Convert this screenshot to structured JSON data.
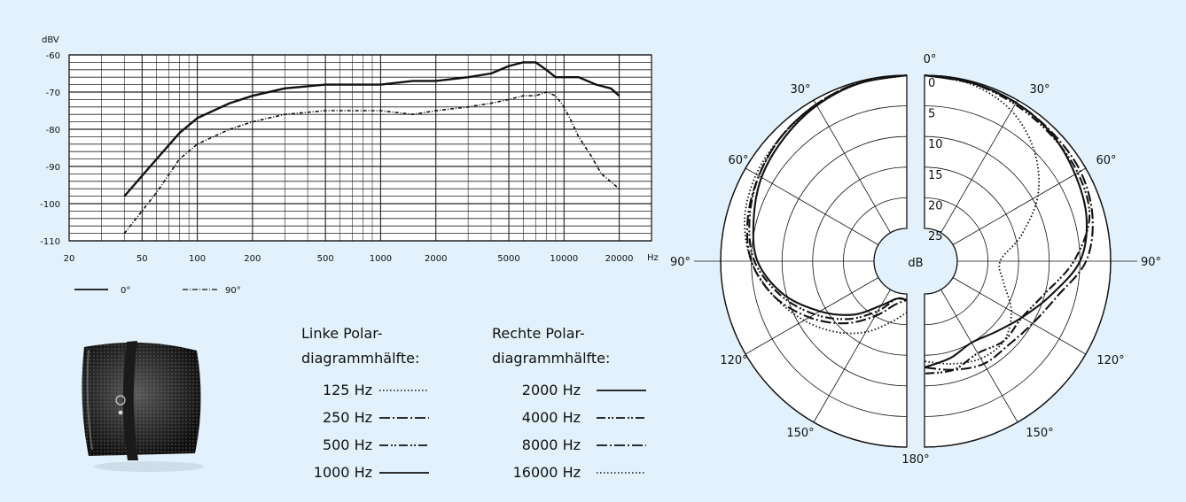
{
  "colors": {
    "panel_bg": "#e2f1fb",
    "ink": "#111111",
    "plot_bg": "#ffffff"
  },
  "chart_data": [
    {
      "type": "line",
      "xscale": "log",
      "ylabel": "dBV",
      "xunit": "Hz",
      "xlim": [
        20,
        30000
      ],
      "ylim": [
        -110,
        -60
      ],
      "grid": true,
      "x_tick_labels": [
        "20",
        "50",
        "100",
        "200",
        "500",
        "1000",
        "2000",
        "5000",
        "10000",
        "20000"
      ],
      "x_tick_values": [
        20,
        50,
        100,
        200,
        500,
        1000,
        2000,
        5000,
        10000,
        20000
      ],
      "y_tick_labels": [
        "-60",
        "-70",
        "-80",
        "-90",
        "-100",
        "-110"
      ],
      "y_tick_values": [
        -60,
        -70,
        -80,
        -90,
        -100,
        -110
      ],
      "series": [
        {
          "name": "0°",
          "style": "solid",
          "x": [
            40,
            60,
            80,
            100,
            150,
            200,
            300,
            500,
            700,
            1000,
            1500,
            2000,
            3000,
            4000,
            5000,
            6000,
            7000,
            8000,
            9000,
            10000,
            12000,
            15000,
            18000,
            20000
          ],
          "y": [
            -98,
            -88,
            -81,
            -77,
            -73,
            -71,
            -69,
            -68,
            -68,
            -68,
            -67,
            -67,
            -66,
            -65,
            -63,
            -62,
            -62,
            -64,
            -66,
            -66,
            -66,
            -68,
            -69,
            -71
          ]
        },
        {
          "name": "90°",
          "style": "dashdot",
          "x": [
            40,
            60,
            80,
            100,
            150,
            200,
            300,
            500,
            700,
            1000,
            1500,
            2000,
            3000,
            4000,
            5000,
            6000,
            7000,
            8000,
            9000,
            10000,
            11000,
            12000,
            14000,
            16000,
            20000
          ],
          "y": [
            -108,
            -97,
            -88,
            -84,
            -80,
            -78,
            -76,
            -75,
            -75,
            -75,
            -76,
            -75,
            -74,
            -73,
            -72,
            -71,
            -71,
            -70,
            -71,
            -74,
            -78,
            -82,
            -87,
            -92,
            -96
          ]
        }
      ]
    },
    {
      "type": "polar",
      "unit": "dB",
      "angle_labels": [
        "0°",
        "30°",
        "60°",
        "90°",
        "120°",
        "150°",
        "180°"
      ],
      "radial_labels": [
        "0",
        "5",
        "10",
        "15",
        "20",
        "25"
      ],
      "radial_values": [
        0,
        5,
        10,
        15,
        20,
        25
      ],
      "left_half": {
        "heading": [
          "Linke Polar-",
          "diagrammhälfte:"
        ],
        "series": [
          {
            "name": "125 Hz",
            "style": "dotted"
          },
          {
            "name": "250 Hz",
            "style": "dashdot"
          },
          {
            "name": "500 Hz",
            "style": "dashdotdot"
          },
          {
            "name": "1000 Hz",
            "style": "solid"
          }
        ]
      },
      "right_half": {
        "heading": [
          "Rechte Polar-",
          "diagrammhälfte:"
        ],
        "series": [
          {
            "name": "2000 Hz",
            "style": "solid"
          },
          {
            "name": "4000 Hz",
            "style": "dashdotdot"
          },
          {
            "name": "8000 Hz",
            "style": "dashdot"
          },
          {
            "name": "16000 Hz",
            "style": "dotted"
          }
        ]
      },
      "angles": [
        0,
        15,
        30,
        45,
        60,
        75,
        90,
        105,
        120,
        135,
        150,
        165,
        180
      ],
      "curves": [
        {
          "half": "left",
          "name": "125 Hz",
          "attenuation": [
            0,
            0.3,
            1,
            1.5,
            2,
            3,
            5,
            8,
            11,
            14,
            17,
            20,
            22
          ]
        },
        {
          "half": "left",
          "name": "250 Hz",
          "attenuation": [
            0,
            0.2,
            0.8,
            1.5,
            2.5,
            3.5,
            5,
            8,
            12,
            16,
            20,
            23,
            24
          ]
        },
        {
          "half": "left",
          "name": "500 Hz",
          "attenuation": [
            0,
            0.2,
            0.8,
            1.5,
            2.5,
            3.8,
            5.5,
            9,
            13,
            17,
            21,
            24,
            24
          ]
        },
        {
          "half": "left",
          "name": "1000 Hz",
          "attenuation": [
            0,
            0.3,
            1,
            2,
            3,
            4.5,
            6,
            9.5,
            14,
            18,
            22,
            24,
            24
          ]
        },
        {
          "half": "right",
          "name": "2000 Hz",
          "attenuation": [
            0,
            0.2,
            0.5,
            1,
            2,
            3,
            5,
            9,
            12,
            14,
            15,
            14,
            13
          ]
        },
        {
          "half": "right",
          "name": "4000 Hz",
          "attenuation": [
            0,
            0.3,
            0.8,
            1.2,
            1.5,
            2.5,
            6,
            10,
            12,
            12,
            13,
            12,
            12
          ]
        },
        {
          "half": "right",
          "name": "8000 Hz",
          "attenuation": [
            0,
            0.3,
            0.5,
            0.8,
            1,
            2,
            4,
            8,
            10,
            11,
            11,
            12,
            13
          ]
        },
        {
          "half": "right",
          "name": "16000 Hz",
          "attenuation": [
            0,
            0.5,
            2,
            5,
            9,
            14,
            18,
            17,
            14,
            12,
            12,
            13,
            14
          ]
        }
      ]
    }
  ],
  "legend_freq": {
    "items": [
      {
        "label": "0°",
        "style": "solid"
      },
      {
        "label": "90°",
        "style": "dashdot"
      }
    ]
  },
  "product_image": {
    "icon": "microphone-capsule-icon"
  }
}
